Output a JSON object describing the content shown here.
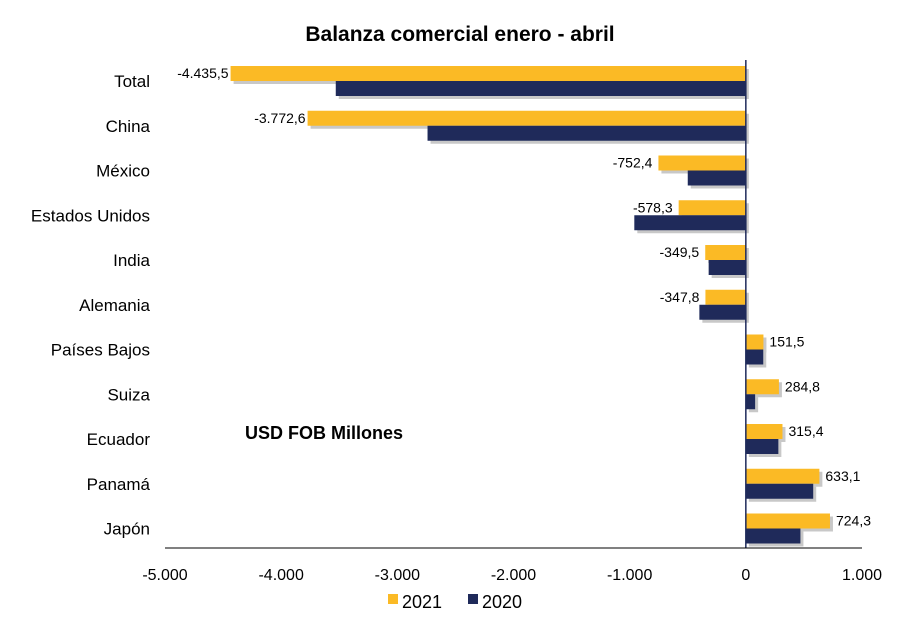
{
  "chart_data": {
    "type": "bar",
    "orientation": "horizontal",
    "title": "Balanza comercial enero - abril",
    "annotation": "USD FOB Millones",
    "categories": [
      "Total",
      "China",
      "México",
      "Estados Unidos",
      "India",
      "Alemania",
      "Países Bajos",
      "Suiza",
      "Ecuador",
      "Panamá",
      "Japón"
    ],
    "series": [
      {
        "name": "2021",
        "color": "#FBBA25",
        "values": [
          -4435.5,
          -3772.6,
          -752.4,
          -578.3,
          -349.5,
          -347.8,
          151.5,
          284.8,
          315.4,
          633.1,
          724.3
        ],
        "labels": [
          "-4.435,5",
          "-3.772,6",
          "-752,4",
          "-578,3",
          "-349,5",
          "-347,8",
          "151,5",
          "284,8",
          "315,4",
          "633,1",
          "724,3"
        ]
      },
      {
        "name": "2020",
        "color": "#1F2A5A",
        "values": [
          -3530,
          -2740,
          -500,
          -960,
          -320,
          -400,
          150,
          80,
          280,
          580,
          470
        ]
      }
    ],
    "xlim": [
      -5000,
      1000
    ],
    "xticks": [
      -5000,
      -4000,
      -3000,
      -2000,
      -1000,
      0,
      1000
    ],
    "xtick_labels": [
      "-5.000",
      "-4.000",
      "-3.000",
      "-2.000",
      "-1.000",
      "0",
      "1.000"
    ],
    "legend_position": "bottom-center",
    "grid": false
  }
}
